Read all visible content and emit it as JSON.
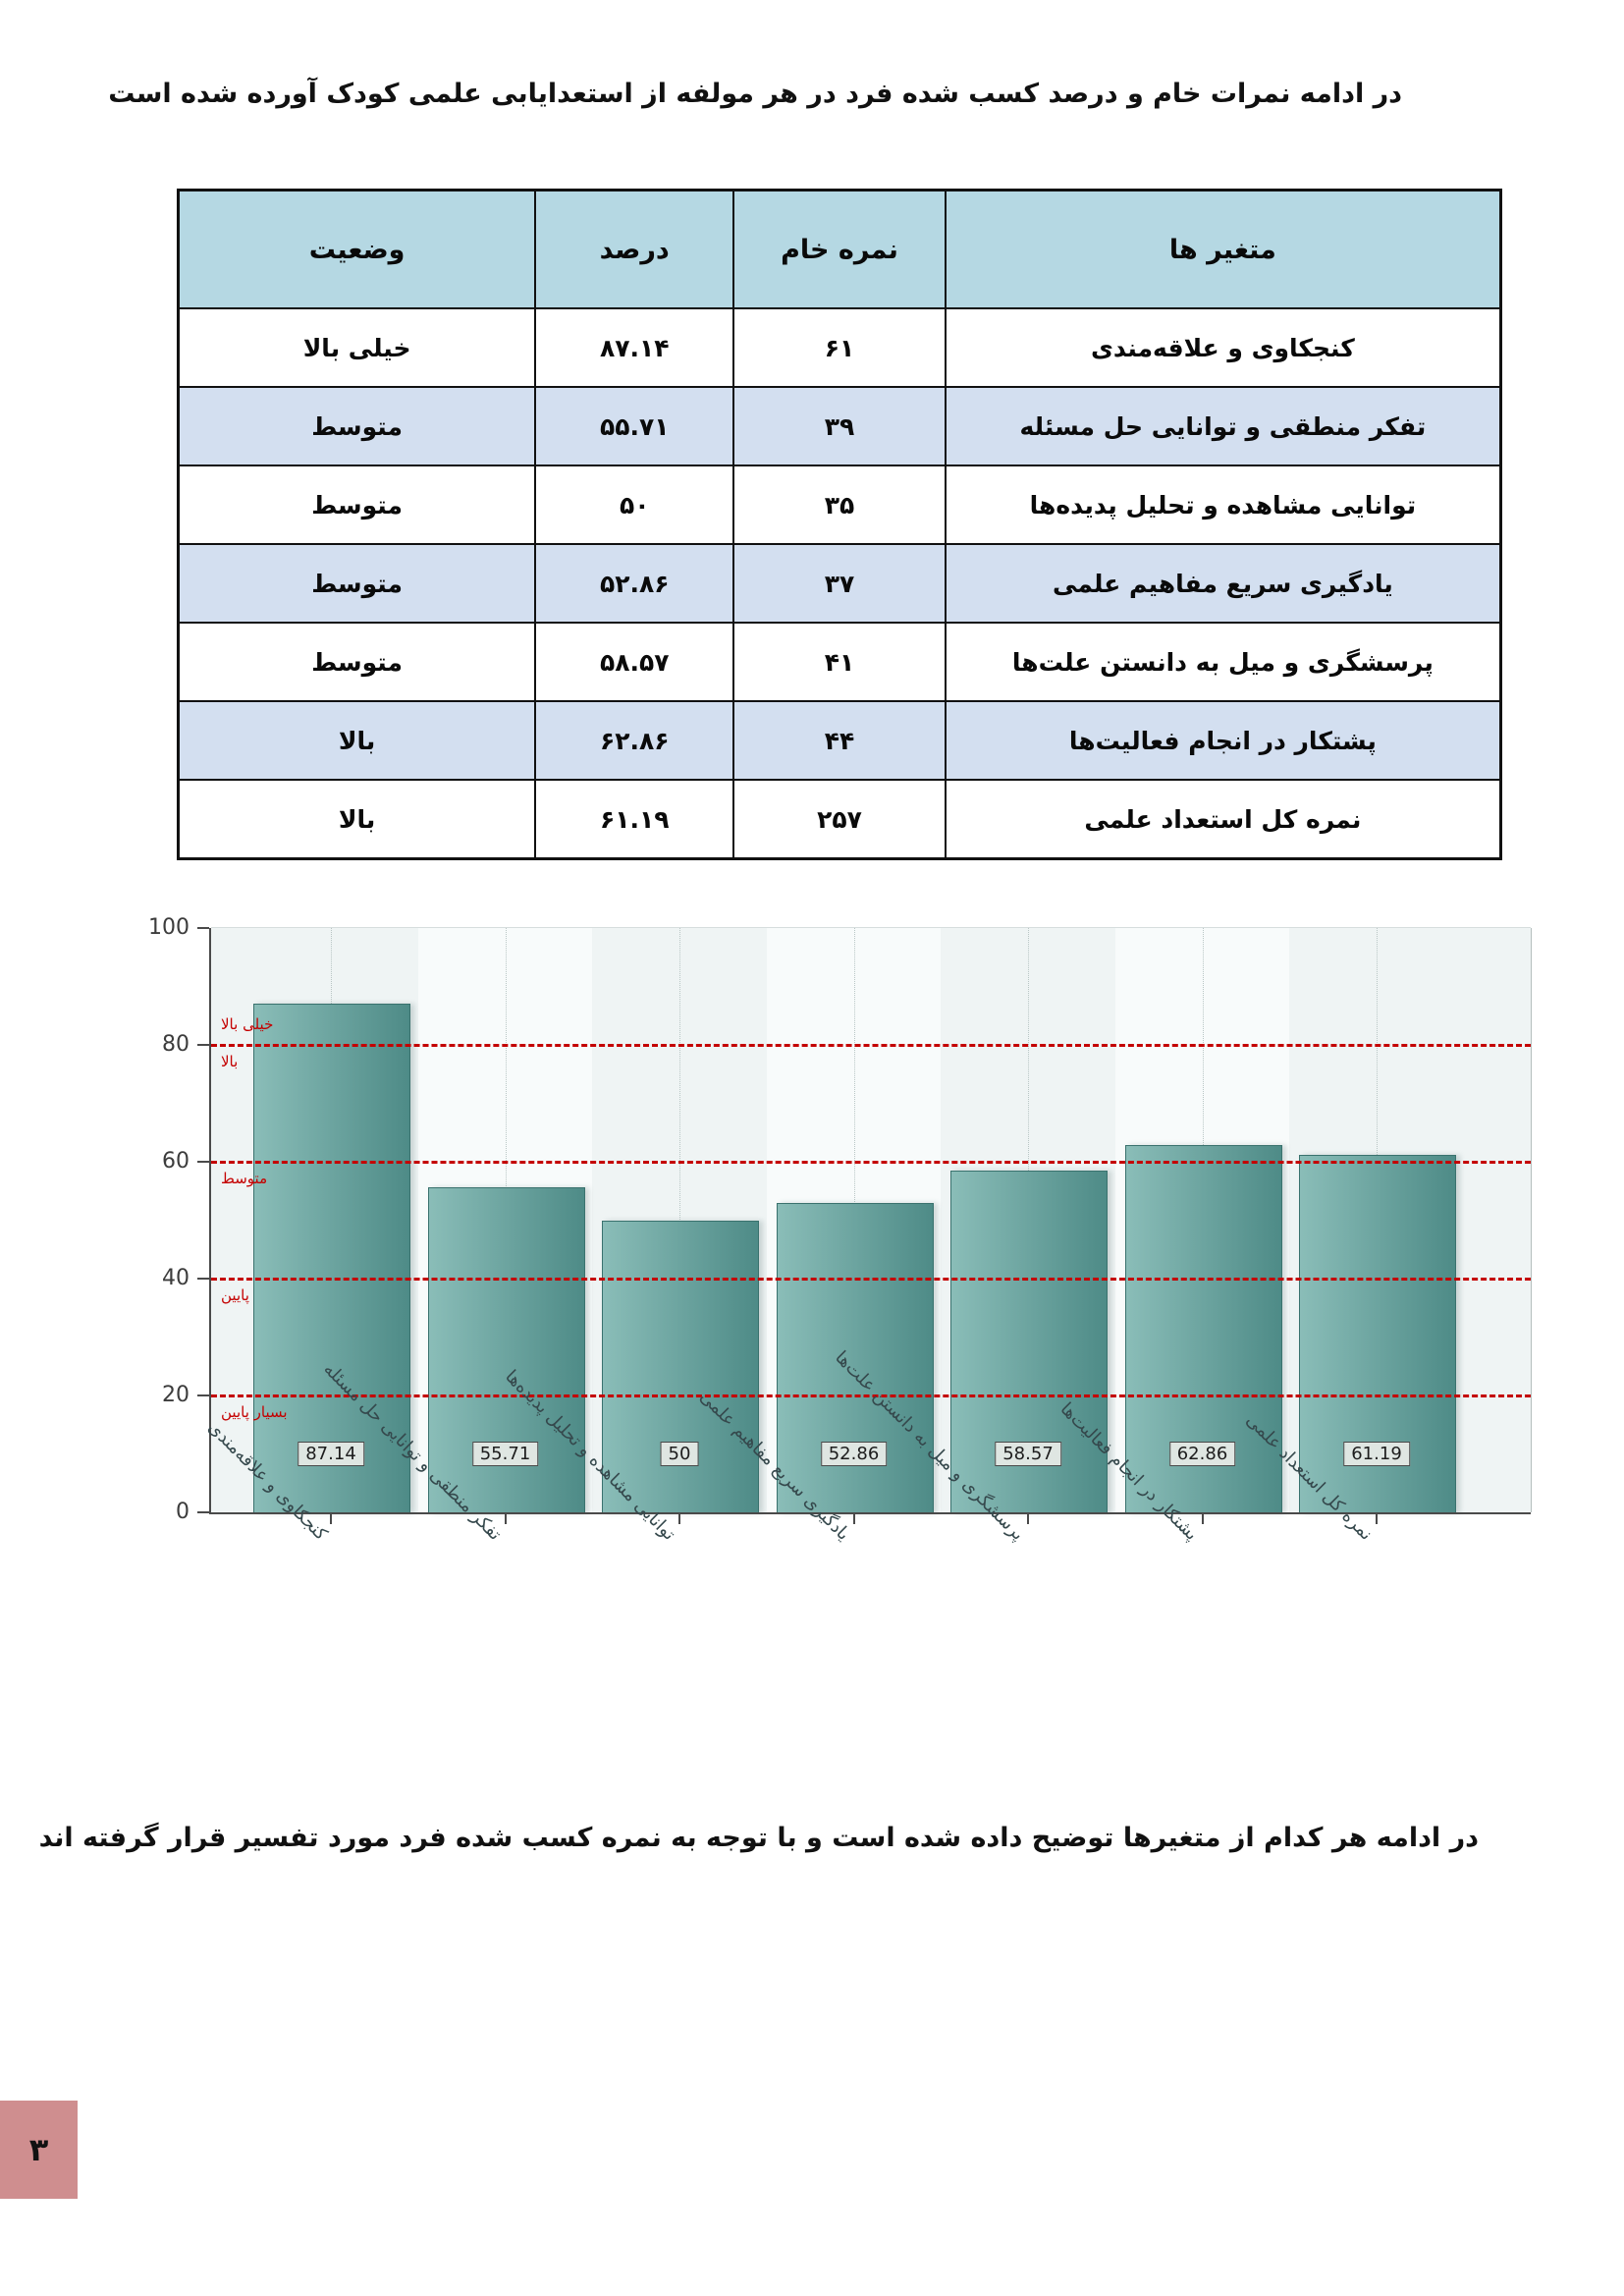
{
  "page": {
    "intro_text": "در ادامه نمرات خام و درصد کسب شده فرد در هر مولفه از استعدایابی علمی کودک آورده شده است",
    "footer_text": "در ادامه هر کدام از متغیرها توضیح داده شده است و با توجه به نمره کسب شده فرد مورد تفسیر قرار گرفته اند",
    "page_number": "۳",
    "page_number_bg": "#cf8e8f"
  },
  "table": {
    "headers": {
      "variables": "متغیر ها",
      "raw_score": "نمره خام",
      "percent": "درصد",
      "status": "وضعیت"
    },
    "rows": [
      {
        "variable": "کنجکاوی و علاقه‌مندی",
        "raw": "۶۱",
        "percent": "۸۷.۱۴",
        "status": "خیلی بالا"
      },
      {
        "variable": "تفکر منطقی و توانایی حل مسئله",
        "raw": "۳۹",
        "percent": "۵۵.۷۱",
        "status": "متوسط"
      },
      {
        "variable": "توانایی مشاهده و تحلیل پدیده‌ها",
        "raw": "۳۵",
        "percent": "۵۰",
        "status": "متوسط"
      },
      {
        "variable": "یادگیری سریع مفاهیم علمی",
        "raw": "۳۷",
        "percent": "۵۲.۸۶",
        "status": "متوسط"
      },
      {
        "variable": "پرسشگری و میل به دانستن علت‌ها",
        "raw": "۴۱",
        "percent": "۵۸.۵۷",
        "status": "متوسط"
      },
      {
        "variable": "پشتکار در انجام فعالیت‌ها",
        "raw": "۴۴",
        "percent": "۶۲.۸۶",
        "status": "بالا"
      },
      {
        "variable": "نمره کل استعداد علمی",
        "raw": "۲۵۷",
        "percent": "۶۱.۱۹",
        "status": "بالا"
      }
    ],
    "header_bg": "#b5d8e3",
    "alt_row_bg": "#d3dff0"
  },
  "chart_data": {
    "type": "bar",
    "title": "",
    "xlabel": "",
    "ylabel": "",
    "categories": [
      "کنجکاوی و علاقه‌مندی",
      "تفکر منطقی و توانایی حل مسئله",
      "توانایی مشاهده و تحلیل پدیده‌ها",
      "یادگیری سریع مفاهیم علمی",
      "پرسشگری و میل به دانستن علت‌ها",
      "پشتکار در انجام فعالیت‌ها",
      "نمره کل استعداد علمی"
    ],
    "values": [
      87.14,
      55.71,
      50,
      52.86,
      58.57,
      62.86,
      61.19
    ],
    "value_labels": [
      "87.14",
      "55.71",
      "50",
      "52.86",
      "58.57",
      "62.86",
      "61.19"
    ],
    "ylim": [
      0,
      100
    ],
    "yticks": [
      0,
      20,
      40,
      60,
      80,
      100
    ],
    "grid": true,
    "legend_position": "none",
    "threshold_lines": [
      20,
      40,
      60,
      80
    ],
    "threshold_color": "#c40000",
    "zone_labels": [
      {
        "text": "خیلی بالا",
        "line": 80,
        "position": "above"
      },
      {
        "text": "بالا",
        "line": 80,
        "position": "below"
      },
      {
        "text": "متوسط",
        "line": 60,
        "position": "below"
      },
      {
        "text": "پایین",
        "line": 40,
        "position": "below"
      },
      {
        "text": "بسیار پایین",
        "line": 20,
        "position": "below"
      }
    ],
    "bar_color_light": "#8abdb8",
    "bar_color_dark": "#4e8b87"
  }
}
